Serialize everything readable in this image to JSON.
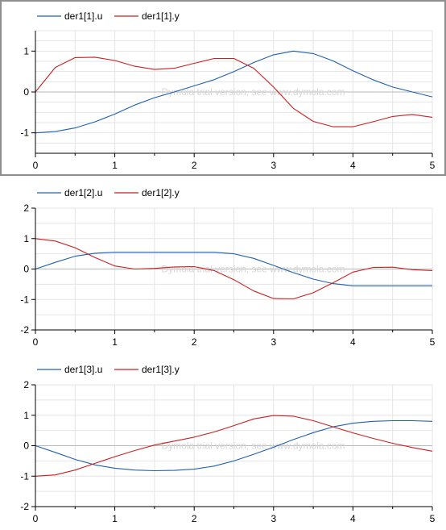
{
  "watermark": "Dymola trial version, see www.dymola.com",
  "colors": {
    "series1": "#1f5fb0",
    "series2": "#cc1f1f",
    "grid": "#e4e4e4",
    "zero": "#b8b8b8",
    "axis": "#000000"
  },
  "chart_data": [
    {
      "type": "line",
      "xlim": [
        0,
        5
      ],
      "ylim": [
        -1.5,
        1.5
      ],
      "xticks": [
        0,
        1,
        2,
        3,
        4,
        5
      ],
      "yticks": [
        -1,
        0,
        1
      ],
      "grid": true,
      "legend_position": "top-left",
      "series": [
        {
          "name": "der1[1].u",
          "x": [
            0,
            0.25,
            0.5,
            0.75,
            1,
            1.25,
            1.5,
            1.75,
            2,
            2.25,
            2.5,
            2.75,
            3,
            3.25,
            3.5,
            3.75,
            4,
            4.25,
            4.5,
            4.75,
            5
          ],
          "y": [
            -1.0,
            -0.97,
            -0.88,
            -0.73,
            -0.54,
            -0.32,
            -0.14,
            0.0,
            0.15,
            0.3,
            0.5,
            0.72,
            0.91,
            1.0,
            0.94,
            0.76,
            0.52,
            0.3,
            0.12,
            0.0,
            -0.12
          ]
        },
        {
          "name": "der1[1].y",
          "x": [
            0,
            0.25,
            0.5,
            0.75,
            1,
            1.25,
            1.5,
            1.75,
            2,
            2.25,
            2.5,
            2.75,
            3,
            3.25,
            3.5,
            3.75,
            4,
            4.25,
            4.5,
            4.75,
            5
          ],
          "y": [
            0.0,
            0.6,
            0.84,
            0.85,
            0.77,
            0.63,
            0.55,
            0.58,
            0.7,
            0.82,
            0.82,
            0.58,
            0.12,
            -0.4,
            -0.72,
            -0.85,
            -0.85,
            -0.73,
            -0.6,
            -0.55,
            -0.62
          ]
        }
      ]
    },
    {
      "type": "line",
      "xlim": [
        0,
        5
      ],
      "ylim": [
        -2,
        2
      ],
      "xticks": [
        0,
        1,
        2,
        3,
        4,
        5
      ],
      "yticks": [
        -2,
        -1,
        0,
        1,
        2
      ],
      "grid": true,
      "legend_position": "top-left",
      "series": [
        {
          "name": "der1[2].u",
          "x": [
            0,
            0.25,
            0.5,
            0.75,
            1,
            1.25,
            1.5,
            1.75,
            2,
            2.25,
            2.5,
            2.75,
            3,
            3.25,
            3.5,
            3.75,
            4,
            4.25,
            4.5,
            4.75,
            5
          ],
          "y": [
            0.0,
            0.22,
            0.42,
            0.52,
            0.55,
            0.55,
            0.55,
            0.55,
            0.55,
            0.55,
            0.5,
            0.35,
            0.12,
            -0.12,
            -0.33,
            -0.48,
            -0.55,
            -0.55,
            -0.55,
            -0.55,
            -0.55
          ]
        },
        {
          "name": "der1[2].y",
          "x": [
            0,
            0.25,
            0.5,
            0.75,
            1,
            1.25,
            1.5,
            1.75,
            2,
            2.25,
            2.5,
            2.75,
            3,
            3.25,
            3.5,
            3.75,
            4,
            4.25,
            4.5,
            4.75,
            5
          ],
          "y": [
            1.0,
            0.92,
            0.7,
            0.38,
            0.1,
            0.0,
            0.02,
            0.07,
            0.08,
            -0.05,
            -0.35,
            -0.72,
            -0.97,
            -0.98,
            -0.78,
            -0.45,
            -0.1,
            0.05,
            0.06,
            -0.02,
            -0.05
          ]
        }
      ]
    },
    {
      "type": "line",
      "xlim": [
        0,
        5
      ],
      "ylim": [
        -2,
        2
      ],
      "xticks": [
        0,
        1,
        2,
        3,
        4,
        5
      ],
      "yticks": [
        -2,
        -1,
        0,
        1,
        2
      ],
      "grid": true,
      "legend_position": "top-left",
      "series": [
        {
          "name": "der1[3].u",
          "x": [
            0,
            0.25,
            0.5,
            0.75,
            1,
            1.25,
            1.5,
            1.75,
            2,
            2.25,
            2.5,
            2.75,
            3,
            3.25,
            3.5,
            3.75,
            4,
            4.25,
            4.5,
            4.75,
            5
          ],
          "y": [
            0.0,
            -0.22,
            -0.45,
            -0.63,
            -0.74,
            -0.8,
            -0.82,
            -0.81,
            -0.77,
            -0.67,
            -0.5,
            -0.28,
            -0.05,
            0.2,
            0.43,
            0.62,
            0.74,
            0.8,
            0.82,
            0.82,
            0.8
          ]
        },
        {
          "name": "der1[3].y",
          "x": [
            0,
            0.25,
            0.5,
            0.75,
            1,
            1.25,
            1.5,
            1.75,
            2,
            2.25,
            2.5,
            2.75,
            3,
            3.25,
            3.5,
            3.75,
            4,
            4.25,
            4.5,
            4.75,
            5
          ],
          "y": [
            -1.0,
            -0.96,
            -0.8,
            -0.58,
            -0.36,
            -0.16,
            0.02,
            0.15,
            0.28,
            0.45,
            0.66,
            0.88,
            0.99,
            0.97,
            0.82,
            0.62,
            0.42,
            0.24,
            0.08,
            -0.06,
            -0.18
          ]
        }
      ]
    }
  ]
}
